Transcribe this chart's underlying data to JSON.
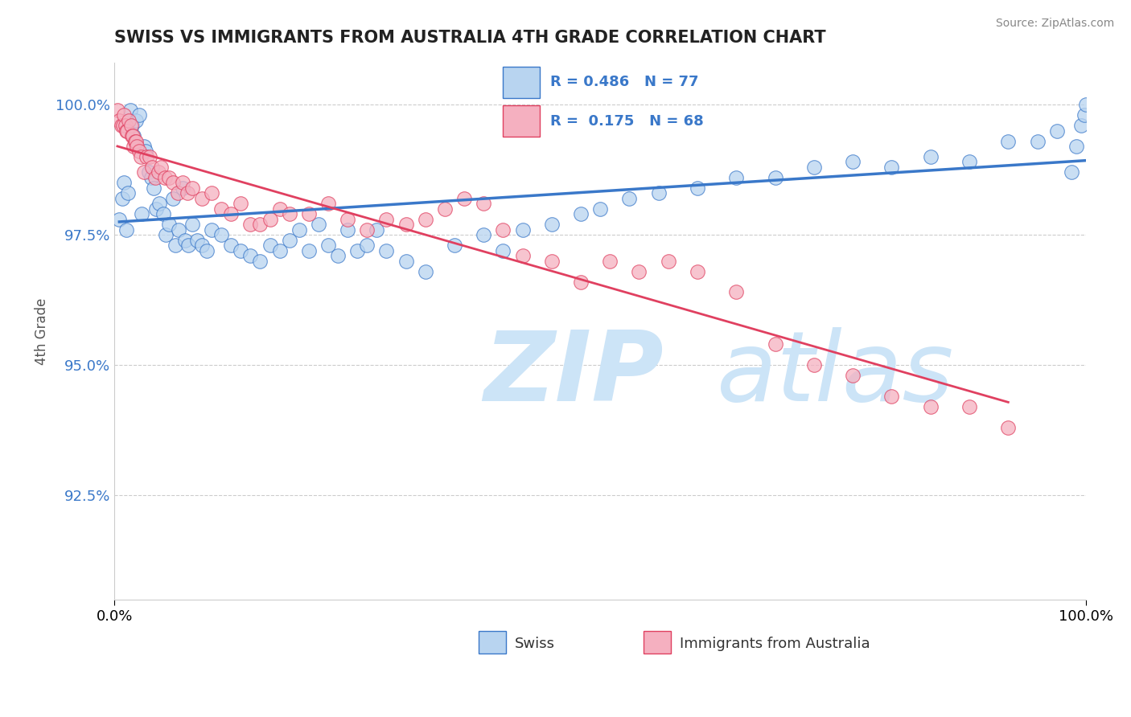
{
  "title": "SWISS VS IMMIGRANTS FROM AUSTRALIA 4TH GRADE CORRELATION CHART",
  "source": "Source: ZipAtlas.com",
  "ylabel": "4th Grade",
  "xlim": [
    0.0,
    1.0
  ],
  "ylim": [
    0.905,
    1.008
  ],
  "yticks": [
    0.925,
    0.95,
    0.975,
    1.0
  ],
  "ytick_labels": [
    "92.5%",
    "95.0%",
    "97.5%",
    "100.0%"
  ],
  "xtick_labels": [
    "0.0%",
    "100.0%"
  ],
  "xticks": [
    0.0,
    1.0
  ],
  "swiss_color": "#b8d4f0",
  "immigrants_color": "#f5b0c0",
  "swiss_line_color": "#3a78c9",
  "immigrants_line_color": "#e04060",
  "legend_swiss_R": "0.486",
  "legend_swiss_N": "77",
  "legend_immigrants_R": "0.175",
  "legend_immigrants_N": "68",
  "swiss_x": [
    0.005,
    0.008,
    0.01,
    0.012,
    0.014,
    0.016,
    0.018,
    0.02,
    0.022,
    0.025,
    0.028,
    0.03,
    0.032,
    0.035,
    0.038,
    0.04,
    0.043,
    0.046,
    0.05,
    0.053,
    0.056,
    0.06,
    0.063,
    0.066,
    0.07,
    0.073,
    0.076,
    0.08,
    0.085,
    0.09,
    0.095,
    0.1,
    0.11,
    0.12,
    0.13,
    0.14,
    0.15,
    0.16,
    0.17,
    0.18,
    0.19,
    0.2,
    0.21,
    0.22,
    0.23,
    0.24,
    0.25,
    0.26,
    0.27,
    0.28,
    0.3,
    0.32,
    0.35,
    0.38,
    0.4,
    0.42,
    0.45,
    0.48,
    0.5,
    0.53,
    0.56,
    0.6,
    0.64,
    0.68,
    0.72,
    0.76,
    0.8,
    0.84,
    0.88,
    0.92,
    0.95,
    0.97,
    0.985,
    0.99,
    0.995,
    0.998,
    1.0
  ],
  "swiss_y": [
    0.978,
    0.982,
    0.985,
    0.976,
    0.983,
    0.999,
    0.996,
    0.994,
    0.997,
    0.998,
    0.979,
    0.992,
    0.991,
    0.987,
    0.986,
    0.984,
    0.98,
    0.981,
    0.979,
    0.975,
    0.977,
    0.982,
    0.973,
    0.976,
    0.984,
    0.974,
    0.973,
    0.977,
    0.974,
    0.973,
    0.972,
    0.976,
    0.975,
    0.973,
    0.972,
    0.971,
    0.97,
    0.973,
    0.972,
    0.974,
    0.976,
    0.972,
    0.977,
    0.973,
    0.971,
    0.976,
    0.972,
    0.973,
    0.976,
    0.972,
    0.97,
    0.968,
    0.973,
    0.975,
    0.972,
    0.976,
    0.977,
    0.979,
    0.98,
    0.982,
    0.983,
    0.984,
    0.986,
    0.986,
    0.988,
    0.989,
    0.988,
    0.99,
    0.989,
    0.993,
    0.993,
    0.995,
    0.987,
    0.992,
    0.996,
    0.998,
    1.0
  ],
  "immigrants_x": [
    0.003,
    0.005,
    0.007,
    0.009,
    0.01,
    0.011,
    0.012,
    0.013,
    0.015,
    0.017,
    0.018,
    0.019,
    0.02,
    0.021,
    0.022,
    0.023,
    0.025,
    0.027,
    0.03,
    0.033,
    0.036,
    0.039,
    0.042,
    0.045,
    0.048,
    0.052,
    0.056,
    0.06,
    0.065,
    0.07,
    0.075,
    0.08,
    0.09,
    0.1,
    0.11,
    0.12,
    0.13,
    0.14,
    0.15,
    0.16,
    0.17,
    0.18,
    0.2,
    0.22,
    0.24,
    0.26,
    0.28,
    0.3,
    0.32,
    0.34,
    0.36,
    0.38,
    0.4,
    0.42,
    0.45,
    0.48,
    0.51,
    0.54,
    0.57,
    0.6,
    0.64,
    0.68,
    0.72,
    0.76,
    0.8,
    0.84,
    0.88,
    0.92
  ],
  "immigrants_y": [
    0.999,
    0.997,
    0.996,
    0.996,
    0.998,
    0.996,
    0.995,
    0.995,
    0.997,
    0.996,
    0.994,
    0.994,
    0.992,
    0.993,
    0.993,
    0.992,
    0.991,
    0.99,
    0.987,
    0.99,
    0.99,
    0.988,
    0.986,
    0.987,
    0.988,
    0.986,
    0.986,
    0.985,
    0.983,
    0.985,
    0.983,
    0.984,
    0.982,
    0.983,
    0.98,
    0.979,
    0.981,
    0.977,
    0.977,
    0.978,
    0.98,
    0.979,
    0.979,
    0.981,
    0.978,
    0.976,
    0.978,
    0.977,
    0.978,
    0.98,
    0.982,
    0.981,
    0.976,
    0.971,
    0.97,
    0.966,
    0.97,
    0.968,
    0.97,
    0.968,
    0.964,
    0.954,
    0.95,
    0.948,
    0.944,
    0.942,
    0.942,
    0.938
  ],
  "grid_color": "#cccccc",
  "background_color": "#ffffff",
  "watermark_zip": "ZIP",
  "watermark_atlas": "atlas",
  "watermark_color": "#cce4f7"
}
